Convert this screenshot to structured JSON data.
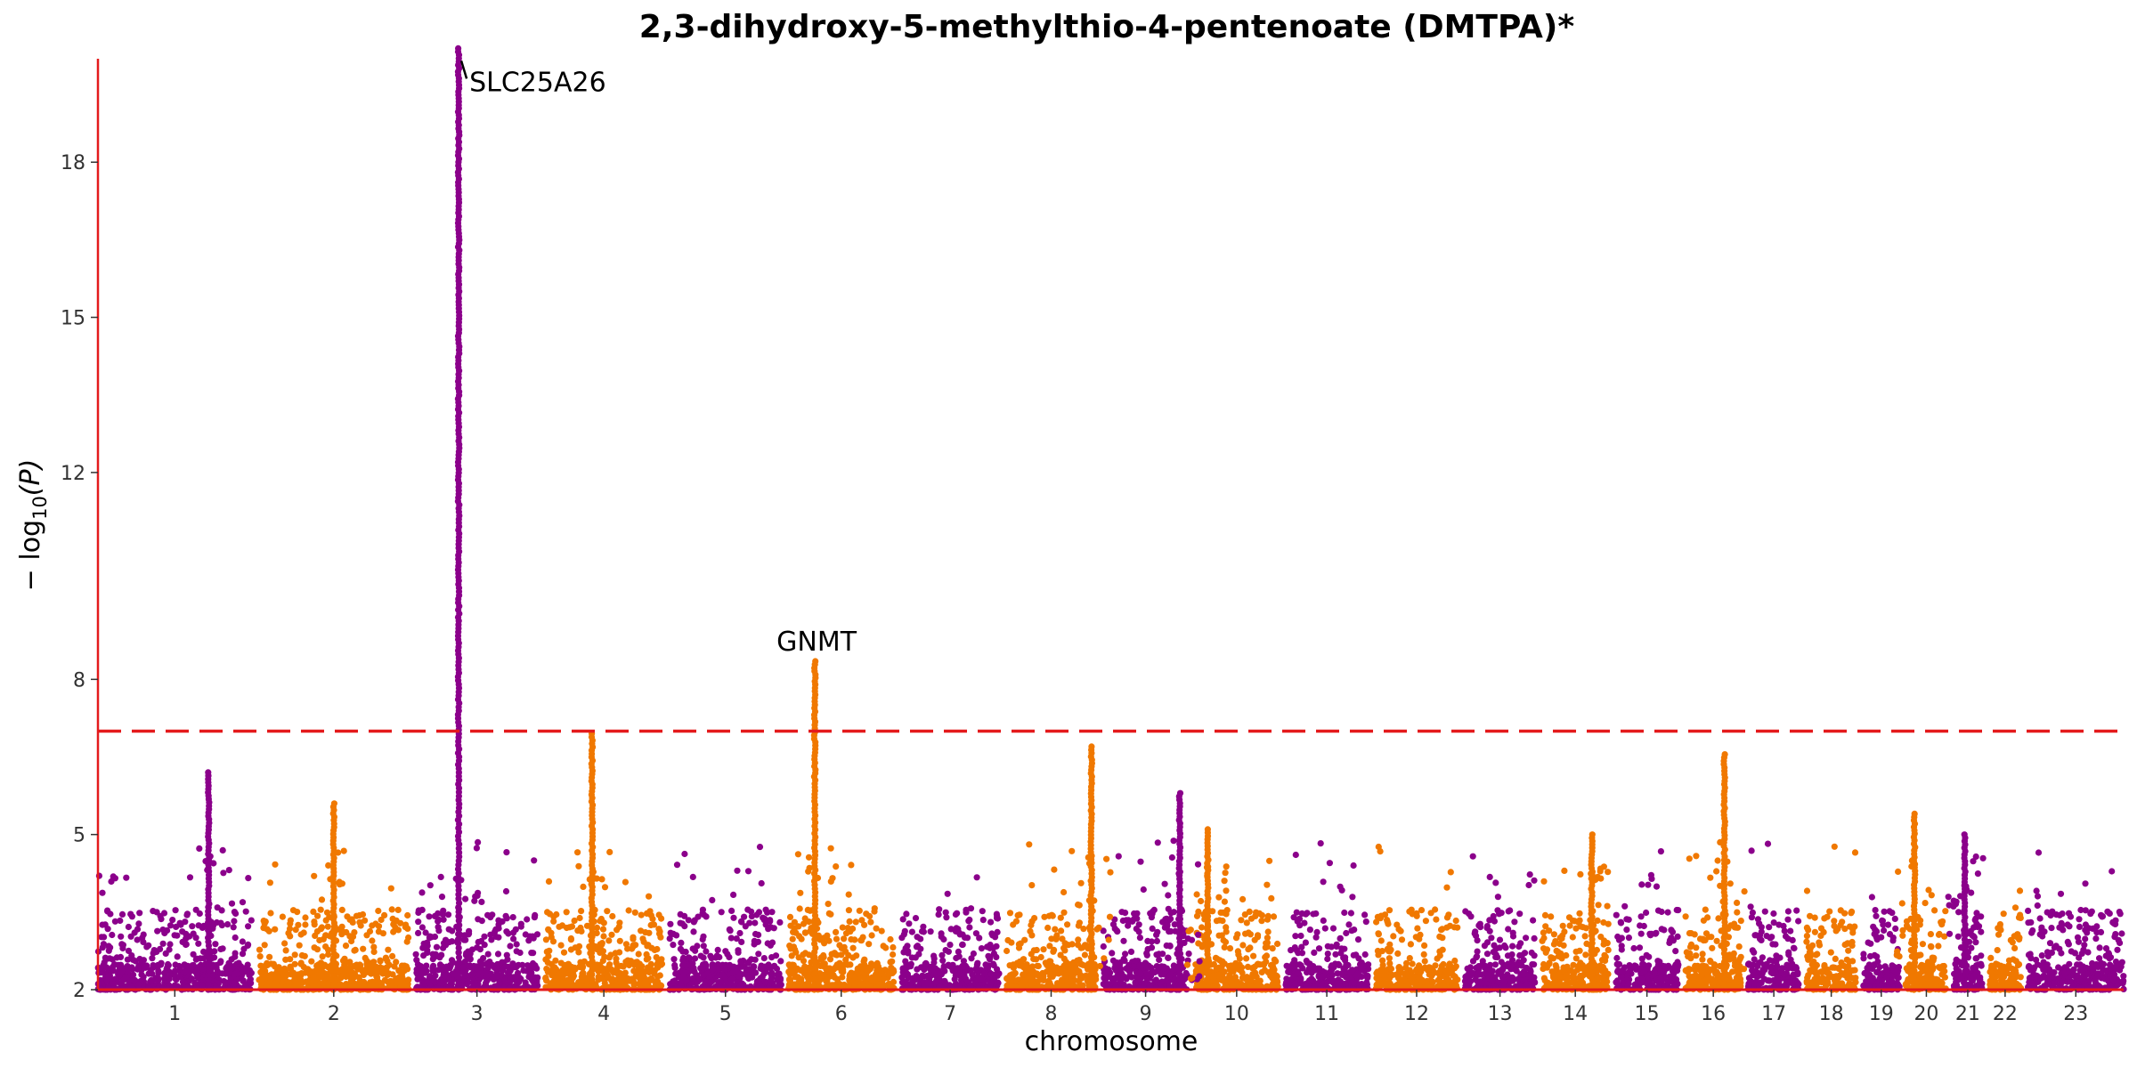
{
  "chart_data": {
    "type": "scatter",
    "title": "2,3-dihydroxy-5-methylthio-4-pentenoate (DMTPA)*",
    "xlabel": "chromosome",
    "ylabel_parts": {
      "prefix": "− log",
      "sub": "10",
      "suffix": "(P)"
    },
    "ylim": [
      2,
      20
    ],
    "y_ticks": [
      2,
      5,
      8,
      12,
      15,
      18
    ],
    "threshold": 7.0,
    "colors": {
      "odd": "#8b008b",
      "even": "#f07800",
      "threshold": "#e41a1c",
      "axis": "#e41a1c"
    },
    "chromosomes": [
      {
        "label": "1",
        "length": 249
      },
      {
        "label": "2",
        "length": 243
      },
      {
        "label": "3",
        "length": 198
      },
      {
        "label": "4",
        "length": 190
      },
      {
        "label": "5",
        "length": 181
      },
      {
        "label": "6",
        "length": 171
      },
      {
        "label": "7",
        "length": 159
      },
      {
        "label": "8",
        "length": 145
      },
      {
        "label": "9",
        "length": 138
      },
      {
        "label": "10",
        "length": 134
      },
      {
        "label": "11",
        "length": 135
      },
      {
        "label": "12",
        "length": 133
      },
      {
        "label": "13",
        "length": 114
      },
      {
        "label": "14",
        "length": 107
      },
      {
        "label": "15",
        "length": 102
      },
      {
        "label": "16",
        "length": 90
      },
      {
        "label": "17",
        "length": 83
      },
      {
        "label": "18",
        "length": 80
      },
      {
        "label": "19",
        "length": 59
      },
      {
        "label": "20",
        "length": 64
      },
      {
        "label": "21",
        "length": 47
      },
      {
        "label": "22",
        "length": 51
      },
      {
        "label": "23",
        "length": 155
      }
    ],
    "peaks": [
      {
        "chr": 3,
        "pos": 0.35,
        "max": 20.2
      },
      {
        "chr": 4,
        "pos": 0.4,
        "max": 6.95
      },
      {
        "chr": 6,
        "pos": 0.25,
        "max": 8.35
      },
      {
        "chr": 1,
        "pos": 0.72,
        "max": 6.2
      },
      {
        "chr": 8,
        "pos": 0.95,
        "max": 6.7
      },
      {
        "chr": 16,
        "pos": 0.7,
        "max": 6.55
      },
      {
        "chr": 9,
        "pos": 0.9,
        "max": 5.8
      },
      {
        "chr": 10,
        "pos": 0.15,
        "max": 5.1
      },
      {
        "chr": 20,
        "pos": 0.2,
        "max": 5.4
      },
      {
        "chr": 21,
        "pos": 0.4,
        "max": 5.0
      },
      {
        "chr": 14,
        "pos": 0.75,
        "max": 5.0
      },
      {
        "chr": 2,
        "pos": 0.5,
        "max": 5.6
      }
    ],
    "annotations": [
      {
        "label": "SLC25A26",
        "chr": 3,
        "pos": 0.35,
        "y": 20.2
      },
      {
        "label": "GNMT",
        "chr": 6,
        "pos": 0.25,
        "y": 8.35
      }
    ]
  }
}
